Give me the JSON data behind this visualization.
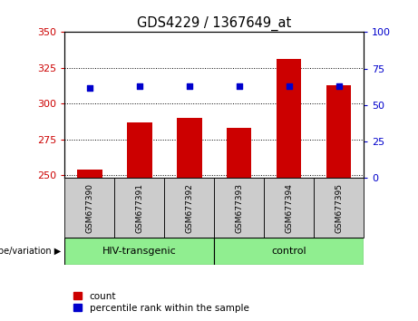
{
  "title": "GDS4229 / 1367649_at",
  "categories": [
    "GSM677390",
    "GSM677391",
    "GSM677392",
    "GSM677393",
    "GSM677394",
    "GSM677395"
  ],
  "bar_values": [
    254,
    287,
    290,
    283,
    331,
    313
  ],
  "scatter_values": [
    62,
    63,
    63,
    63,
    63,
    63
  ],
  "bar_color": "#cc0000",
  "scatter_color": "#0000cc",
  "ylim_left": [
    248,
    350
  ],
  "ylim_right": [
    0,
    100
  ],
  "yticks_left": [
    250,
    275,
    300,
    325,
    350
  ],
  "yticks_right": [
    0,
    25,
    50,
    75,
    100
  ],
  "group1_label": "HIV-transgenic",
  "group2_label": "control",
  "group1_indices": [
    0,
    1,
    2
  ],
  "group2_indices": [
    3,
    4,
    5
  ],
  "group_color": "#90ee90",
  "genotype_label": "genotype/variation",
  "legend_count": "count",
  "legend_percentile": "percentile rank within the sample",
  "tick_color_left": "#cc0000",
  "tick_color_right": "#0000cc",
  "col_bg_color": "#cccccc",
  "bar_baseline": 248,
  "fig_width": 4.61,
  "fig_height": 3.54,
  "dpi": 100
}
